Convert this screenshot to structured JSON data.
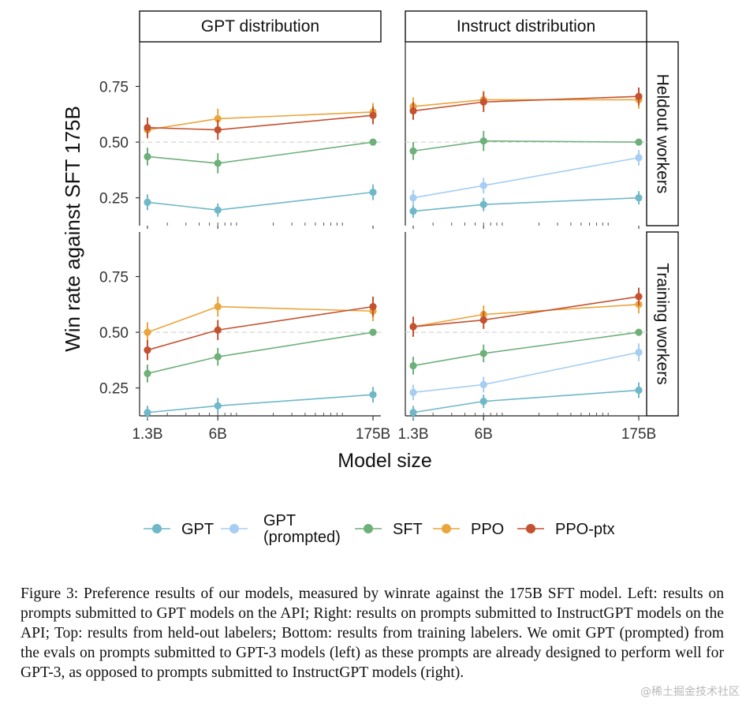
{
  "chart_data": {
    "type": "line",
    "ylabel": "Win rate against SFT 175B",
    "xlabel": "Model size",
    "x_scale": "log",
    "x_values": [
      1.3,
      6,
      175
    ],
    "x_tick_labels": [
      "1.3B",
      "6B",
      "175B"
    ],
    "ylim": [
      0.125,
      0.95
    ],
    "y_ticks": [
      0.25,
      0.5,
      0.75
    ],
    "y_tick_labels": [
      "0.25",
      "0.50",
      "0.75"
    ],
    "reference_line": 0.5,
    "column_titles": [
      "GPT distribution",
      "Instruct distribution"
    ],
    "row_titles": [
      "Heldout workers",
      "Training workers"
    ],
    "series_styles": [
      {
        "name": "GPT",
        "color": "#6fb8c8"
      },
      {
        "name": "GPT (prompted)",
        "color": "#a6cdf2"
      },
      {
        "name": "SFT",
        "color": "#6eb07a"
      },
      {
        "name": "PPO",
        "color": "#eaa53c"
      },
      {
        "name": "PPO-ptx",
        "color": "#c4512f"
      }
    ],
    "legend": [
      {
        "name": "GPT",
        "lines": [
          "GPT"
        ]
      },
      {
        "name": "GPT (prompted)",
        "lines": [
          "GPT",
          "(prompted)"
        ]
      },
      {
        "name": "SFT",
        "lines": [
          "SFT"
        ]
      },
      {
        "name": "PPO",
        "lines": [
          "PPO"
        ]
      },
      {
        "name": "PPO-ptx",
        "lines": [
          "PPO-ptx"
        ]
      }
    ],
    "legend_position": "bottom",
    "panels": [
      {
        "column": "GPT distribution",
        "row": "Heldout workers",
        "series": [
          {
            "name": "GPT",
            "values": [
              0.23,
              0.195,
              0.275
            ],
            "errors": [
              0.035,
              0.03,
              0.035
            ]
          },
          {
            "name": "SFT",
            "values": [
              0.435,
              0.405,
              0.5
            ],
            "errors": [
              0.04,
              0.045,
              0.0
            ]
          },
          {
            "name": "PPO",
            "values": [
              0.555,
              0.605,
              0.635
            ],
            "errors": [
              0.04,
              0.045,
              0.04
            ]
          },
          {
            "name": "PPO-ptx",
            "values": [
              0.565,
              0.555,
              0.62
            ],
            "errors": [
              0.045,
              0.045,
              0.04
            ]
          }
        ]
      },
      {
        "column": "Instruct distribution",
        "row": "Heldout workers",
        "series": [
          {
            "name": "GPT",
            "values": [
              0.19,
              0.22,
              0.25
            ],
            "errors": [
              0.03,
              0.03,
              0.03
            ]
          },
          {
            "name": "GPT (prompted)",
            "values": [
              0.25,
              0.305,
              0.43
            ],
            "errors": [
              0.035,
              0.035,
              0.035
            ]
          },
          {
            "name": "SFT",
            "values": [
              0.46,
              0.505,
              0.5
            ],
            "errors": [
              0.04,
              0.045,
              0.0
            ]
          },
          {
            "name": "PPO",
            "values": [
              0.66,
              0.69,
              0.69
            ],
            "errors": [
              0.04,
              0.04,
              0.04
            ]
          },
          {
            "name": "PPO-ptx",
            "values": [
              0.64,
              0.68,
              0.705
            ],
            "errors": [
              0.04,
              0.045,
              0.04
            ]
          }
        ]
      },
      {
        "column": "GPT distribution",
        "row": "Training workers",
        "series": [
          {
            "name": "GPT",
            "values": [
              0.14,
              0.17,
              0.22
            ],
            "errors": [
              0.03,
              0.035,
              0.035
            ]
          },
          {
            "name": "SFT",
            "values": [
              0.315,
              0.39,
              0.5
            ],
            "errors": [
              0.04,
              0.04,
              0.0
            ]
          },
          {
            "name": "PPO",
            "values": [
              0.5,
              0.615,
              0.595
            ],
            "errors": [
              0.045,
              0.045,
              0.045
            ]
          },
          {
            "name": "PPO-ptx",
            "values": [
              0.42,
              0.51,
              0.615
            ],
            "errors": [
              0.045,
              0.045,
              0.045
            ]
          }
        ]
      },
      {
        "column": "Instruct distribution",
        "row": "Training workers",
        "series": [
          {
            "name": "GPT",
            "values": [
              0.14,
              0.19,
              0.24
            ],
            "errors": [
              0.03,
              0.03,
              0.035
            ]
          },
          {
            "name": "GPT (prompted)",
            "values": [
              0.23,
              0.265,
              0.41
            ],
            "errors": [
              0.035,
              0.035,
              0.04
            ]
          },
          {
            "name": "SFT",
            "values": [
              0.35,
              0.405,
              0.5
            ],
            "errors": [
              0.04,
              0.04,
              0.0
            ]
          },
          {
            "name": "PPO",
            "values": [
              0.525,
              0.58,
              0.625
            ],
            "errors": [
              0.045,
              0.04,
              0.04
            ]
          },
          {
            "name": "PPO-ptx",
            "values": [
              0.525,
              0.555,
              0.66
            ],
            "errors": [
              0.045,
              0.04,
              0.04
            ]
          }
        ]
      }
    ]
  },
  "caption": "Figure 3: Preference results of our models, measured by winrate against the 175B SFT model. Left: results on prompts submitted to GPT models on the API; Right: results on prompts submitted to InstructGPT models on the API; Top: results from held-out labelers; Bottom: results from training labelers. We omit GPT (prompted) from the evals on prompts submitted to GPT-3 models (left) as these prompts are already designed to perform well for GPT-3, as opposed to prompts submitted to InstructGPT models (right).",
  "watermark": "@稀土掘金技术社区"
}
